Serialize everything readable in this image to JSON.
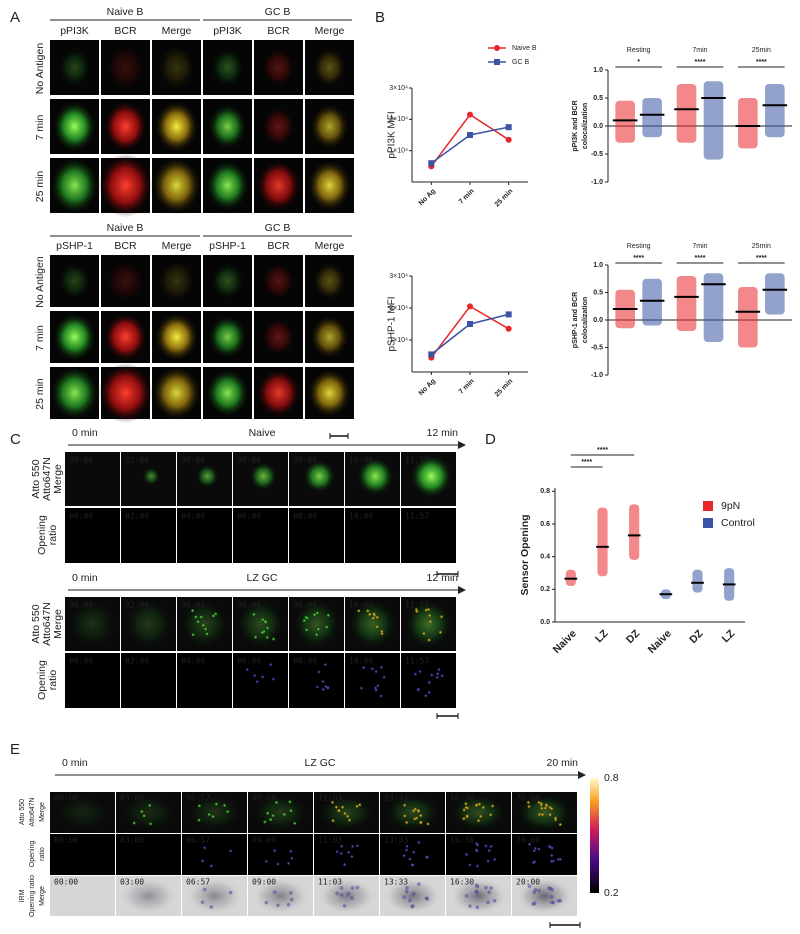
{
  "panels": {
    "a": {
      "label": "A",
      "blocks": [
        {
          "groups": [
            "Naive B",
            "GC B"
          ],
          "columns": [
            "pPI3K",
            "BCR",
            "Merge",
            "pPI3K",
            "BCR",
            "Merge"
          ],
          "rows": [
            "No Antigen",
            "7 min",
            "25 min"
          ]
        },
        {
          "groups": [
            "Naive B",
            "GC B"
          ],
          "columns": [
            "pSHP-1",
            "BCR",
            "Merge",
            "pSHP-1",
            "BCR",
            "Merge"
          ],
          "rows": [
            "No Antigen",
            "7 min",
            "25 min"
          ]
        }
      ]
    },
    "b": {
      "label": "B"
    },
    "c": {
      "label": "C",
      "sequences": [
        {
          "start": "0 min",
          "title": "Naive",
          "end": "12 min",
          "timestamps": [
            "00:00",
            "02:00",
            "04:00",
            "06:00",
            "08:00",
            "10:00",
            "11:57"
          ],
          "channel_labels": [
            "Atto 550",
            "Atto647N",
            "Merge"
          ],
          "ratio_label": [
            "Opening",
            "ratio"
          ]
        },
        {
          "start": "0 min",
          "title": "LZ GC",
          "end": "12 min",
          "timestamps": [
            "00:00",
            "02:00",
            "04:00",
            "06:00",
            "08:00",
            "10:00",
            "11:57"
          ],
          "channel_labels": [
            "Atto 550",
            "Atto647N",
            "Merge"
          ],
          "ratio_label": [
            "Opening",
            "ratio"
          ]
        }
      ]
    },
    "d": {
      "label": "D"
    },
    "e": {
      "label": "E",
      "start": "0 min",
      "title": "LZ GC",
      "end": "20 min",
      "timestamps": [
        "00:00",
        "03:00",
        "06:57",
        "09:00",
        "11:03",
        "13:33",
        "16:30",
        "20:00"
      ],
      "channel_labels": [
        "Atto 550",
        "Atto647N",
        "Merge"
      ],
      "ratio_label": [
        "Opening",
        "ratio"
      ],
      "irm_label": [
        "IRM",
        "Opening ratio",
        "Merge"
      ],
      "colorbar_ticks": [
        0.8,
        0.2
      ]
    }
  },
  "chart_data": [
    {
      "type": "line",
      "y_label": "pPI3K MFI",
      "categories": [
        "No Ag",
        "7 min",
        "25 min"
      ],
      "series": [
        {
          "name": "Naive B",
          "color": "#e8262a",
          "values": [
            5000,
            21500,
            13500
          ]
        },
        {
          "name": "GC B",
          "color": "#3a53a4",
          "values": [
            6000,
            15000,
            17500
          ]
        }
      ],
      "ylim": [
        0,
        30000
      ],
      "yticks": [
        {
          "value": 10000,
          "label": "1×10⁴"
        },
        {
          "value": 20000,
          "label": "2×10⁴"
        },
        {
          "value": 30000,
          "label": "3×10⁴"
        }
      ],
      "legend": "top"
    },
    {
      "type": "line",
      "y_label": "pSHP-1 MFI",
      "categories": [
        "No Ag",
        "7 min",
        "25 min"
      ],
      "series": [
        {
          "color": "#e8262a",
          "values": [
            4500,
            20500,
            13500
          ]
        },
        {
          "color": "#3a53a4",
          "values": [
            5500,
            15000,
            18000
          ]
        }
      ],
      "ylim": [
        0,
        30000
      ],
      "yticks": [
        {
          "value": 10000,
          "label": "1×10⁴"
        },
        {
          "value": 20000,
          "label": "2×10⁴"
        },
        {
          "value": 30000,
          "label": "3×10⁴"
        }
      ]
    },
    {
      "type": "dot",
      "y_label": [
        "pPI3K and BCR",
        "colocalization"
      ],
      "categories": [
        "Resting",
        "7min",
        "25min"
      ],
      "annotations": [
        "*",
        "****",
        "****"
      ],
      "series": [
        {
          "color": "#e8262a",
          "values": [
            0.1,
            0.3,
            0.0
          ],
          "ranges": [
            [
              -0.3,
              0.45
            ],
            [
              -0.3,
              0.75
            ],
            [
              -0.4,
              0.5
            ]
          ]
        },
        {
          "color": "#3a53a4",
          "values": [
            0.2,
            0.5,
            0.37
          ],
          "ranges": [
            [
              -0.2,
              0.5
            ],
            [
              -0.6,
              0.8
            ],
            [
              -0.2,
              0.75
            ]
          ]
        }
      ],
      "ylim": [
        -1,
        1
      ],
      "yticks": [
        {
          "value": -1,
          "label": "-1.0"
        },
        -0.5,
        {
          "value": 0,
          "label": "0.0"
        },
        0.5,
        {
          "value": 1,
          "label": "1.0"
        }
      ]
    },
    {
      "type": "dot",
      "y_label": [
        "pSHP-1 and BCR",
        "colocalization"
      ],
      "categories": [
        "Resting",
        "7min",
        "25min"
      ],
      "annotations": [
        "****",
        "****",
        "****"
      ],
      "series": [
        {
          "color": "#e8262a",
          "values": [
            0.2,
            0.42,
            0.15
          ],
          "ranges": [
            [
              -0.15,
              0.55
            ],
            [
              -0.2,
              0.8
            ],
            [
              -0.5,
              0.6
            ]
          ]
        },
        {
          "color": "#3a53a4",
          "values": [
            0.35,
            0.65,
            0.55
          ],
          "ranges": [
            [
              -0.1,
              0.75
            ],
            [
              -0.4,
              0.85
            ],
            [
              0.1,
              0.85
            ]
          ]
        }
      ],
      "ylim": [
        -1,
        1
      ],
      "yticks": [
        {
          "value": -1,
          "label": "-1.0"
        },
        -0.5,
        {
          "value": 0,
          "label": "0.0"
        },
        0.5,
        {
          "value": 1,
          "label": "1.0"
        }
      ]
    },
    {
      "type": "dot",
      "y_label": [
        "Sensor Opening"
      ],
      "categories": [
        "Naive",
        "LZ",
        "DZ",
        "Naive",
        "DZ",
        "LZ"
      ],
      "annotations": [
        "****",
        "****"
      ],
      "series": [
        {
          "name": "9pN",
          "color": "#e8262a",
          "values": [
            0.265,
            0.46,
            0.53,
            null,
            null,
            null
          ],
          "ranges": [
            [
              0.22,
              0.32
            ],
            [
              0.28,
              0.7
            ],
            [
              0.38,
              0.72
            ],
            null,
            null,
            null
          ]
        },
        {
          "name": "Control",
          "color": "#3a53a4",
          "values": [
            null,
            null,
            null,
            0.17,
            0.24,
            0.23
          ],
          "ranges": [
            null,
            null,
            null,
            [
              0.14,
              0.2
            ],
            [
              0.18,
              0.32
            ],
            [
              0.13,
              0.33
            ]
          ]
        }
      ],
      "ylim": [
        0,
        0.82
      ],
      "yticks": [
        {
          "value": 0,
          "label": "0.0"
        },
        0.2,
        0.4,
        0.6,
        0.8
      ],
      "legend": "upper right"
    }
  ]
}
